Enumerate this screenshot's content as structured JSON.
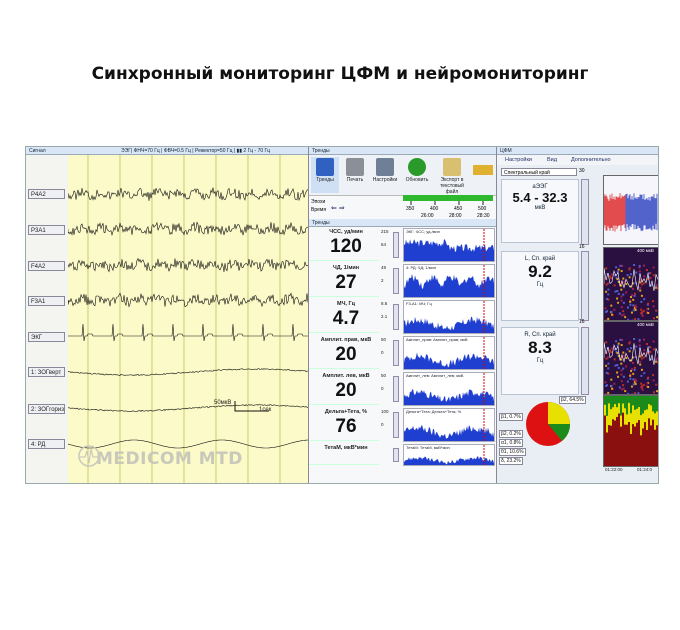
{
  "title": "Синхронный мониторинг ЦФМ и нейромониторинг",
  "signal": {
    "panel_title": "Сигнал",
    "filters": "ЭЭГ| ФНЧ=70 Гц | ФВЧ=0.5 Гц | Режектор=50 Гц | ▮▮ 2 Гц - 70 Гц",
    "leads": [
      "P4A2",
      "P3A1",
      "F4A2",
      "F3A1",
      "ЭКГ",
      "1: ЗОГверт",
      "2: ЗОГгориз",
      "4: РД"
    ],
    "scale_amp": "50мкВ",
    "scale_time": "1сек",
    "watermark": "MEDICOM MTD"
  },
  "trends": {
    "panel_title": "Тренды",
    "toolbar": [
      "Тренды",
      "Печать",
      "Настройки",
      "Обновить",
      "Экспорт в текстовый файл"
    ],
    "epochs_label": "Эпохи",
    "time_label": "Время",
    "timeline_ticks": [
      "350",
      "400",
      "450",
      "500"
    ],
    "timeline_times": [
      "26:00",
      "28:00",
      "28:30"
    ],
    "sub_title": "Тренды",
    "rows": [
      {
        "label": "ЧСС, уд/мин",
        "value": "120",
        "axis_top": "215",
        "axis_mid": "64",
        "plot_label": "ЭКГ: ЧСС; уд./мин"
      },
      {
        "label": "ЧД, 1/мин",
        "value": "27",
        "axis_top": "49",
        "axis_mid": "2",
        "plot_label": "4: РД: ЧД; 1/мин"
      },
      {
        "label": "МЧ, Гц",
        "value": "4.7",
        "axis_top": "8.6",
        "axis_mid": "2.1",
        "plot_label": "F3-A1: МЧ; Гц"
      },
      {
        "label": "Амплит. прав, мкВ",
        "value": "20",
        "axis_top": "50",
        "axis_mid": "0",
        "plot_label": "Амплит_прав: Амплит_прав; мкВ"
      },
      {
        "label": "Амплит. лев, мкВ",
        "value": "20",
        "axis_top": "50",
        "axis_mid": "0",
        "plot_label": "Амплит_лев: Амплит_лев; мкВ"
      },
      {
        "label": "Дельта+Тета, %",
        "value": "76",
        "axis_top": "100",
        "axis_mid": "0",
        "plot_label": "Дельта+Тета: Дельта+Тета; %"
      },
      {
        "label": "ТетаМ, мкВ*мин",
        "value": "",
        "axis_top": "",
        "axis_mid": "",
        "plot_label": "ТетаМ: ТетаМ, мкВ*мин"
      }
    ]
  },
  "cfm": {
    "panel_title": "ЦФМ",
    "tabs": [
      "Настройки",
      "Вид",
      "Дополнительно"
    ],
    "dropdown": "Спектральный край",
    "eeg_label": "аЭЭГ",
    "eeg_value": "5.4 - 32.3",
    "eeg_unit": "мкВ",
    "slider_max": "30",
    "l_label": "L, Сп. край",
    "l_value": "9.2",
    "l_unit": "Гц",
    "r_label": "R, Сп. край",
    "r_value": "8.3",
    "r_unit": "Гц",
    "spec_label_1": "Гц",
    "spec_label_2": "400 мкВ",
    "spec_val_16": "16",
    "pie_labels": [
      "β2, 64.5%",
      "β1, 0.7%",
      "β2, 0.2%",
      "α1, 0.8%",
      "θ1, 10.6%",
      "δ, 23.2%"
    ],
    "times": [
      "01:22:00",
      "01:24:0"
    ]
  },
  "colors": {
    "trend_fill": "#1f3fd0",
    "grid_bg": "#fbfac8",
    "pie_red": "#d11",
    "pie_yellow": "#e8e000",
    "pie_green": "#1a8a1a"
  }
}
